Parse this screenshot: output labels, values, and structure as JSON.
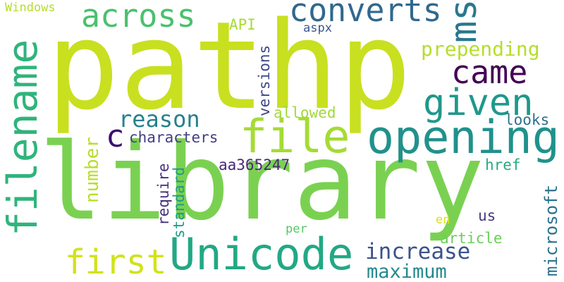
{
  "words": [
    {
      "text": "pathp",
      "color": "#c8e020"
    },
    {
      "text": "library",
      "color": "#7ad151"
    },
    {
      "text": "opening",
      "color": "#21918c"
    },
    {
      "text": "msdn",
      "color": "#2a788e"
    },
    {
      "text": "file",
      "color": "#a5db36"
    },
    {
      "text": "Unicode",
      "color": "#22a884"
    },
    {
      "text": "filename",
      "color": "#2fb47c"
    },
    {
      "text": "converts",
      "color": "#31688e"
    },
    {
      "text": "across",
      "color": "#4ac16d"
    },
    {
      "text": "came",
      "color": "#440154"
    },
    {
      "text": "given",
      "color": "#1f988b"
    },
    {
      "text": "first",
      "color": "#d2e21b"
    },
    {
      "text": "prepending",
      "color": "#b5de2b"
    },
    {
      "text": "reason",
      "color": "#27808e"
    },
    {
      "text": "increase",
      "color": "#3b528b"
    },
    {
      "text": "maximum",
      "color": "#23898e"
    },
    {
      "text": "c",
      "color": "#3b0f70"
    },
    {
      "text": "characters",
      "color": "#433e85"
    },
    {
      "text": "aa365247",
      "color": "#482878"
    },
    {
      "text": "number",
      "color": "#b8de29"
    },
    {
      "text": "microsoft",
      "color": "#2c728e"
    },
    {
      "text": "versions",
      "color": "#3e4989"
    },
    {
      "text": "require",
      "color": "#46327e"
    },
    {
      "text": "standard",
      "color": "#1e9b8a"
    },
    {
      "text": "allowed",
      "color": "#a0da39"
    },
    {
      "text": "looks",
      "color": "#2c728e"
    },
    {
      "text": "href",
      "color": "#25ac82"
    },
    {
      "text": "article",
      "color": "#6ccd5a"
    },
    {
      "text": "Windows",
      "color": "#b5de2b"
    },
    {
      "text": "API",
      "color": "#a8db34"
    },
    {
      "text": "aspx",
      "color": "#38588c"
    },
    {
      "text": "per",
      "color": "#56c667"
    },
    {
      "text": "us",
      "color": "#443a83"
    },
    {
      "text": "en",
      "color": "#d8e219"
    }
  ]
}
